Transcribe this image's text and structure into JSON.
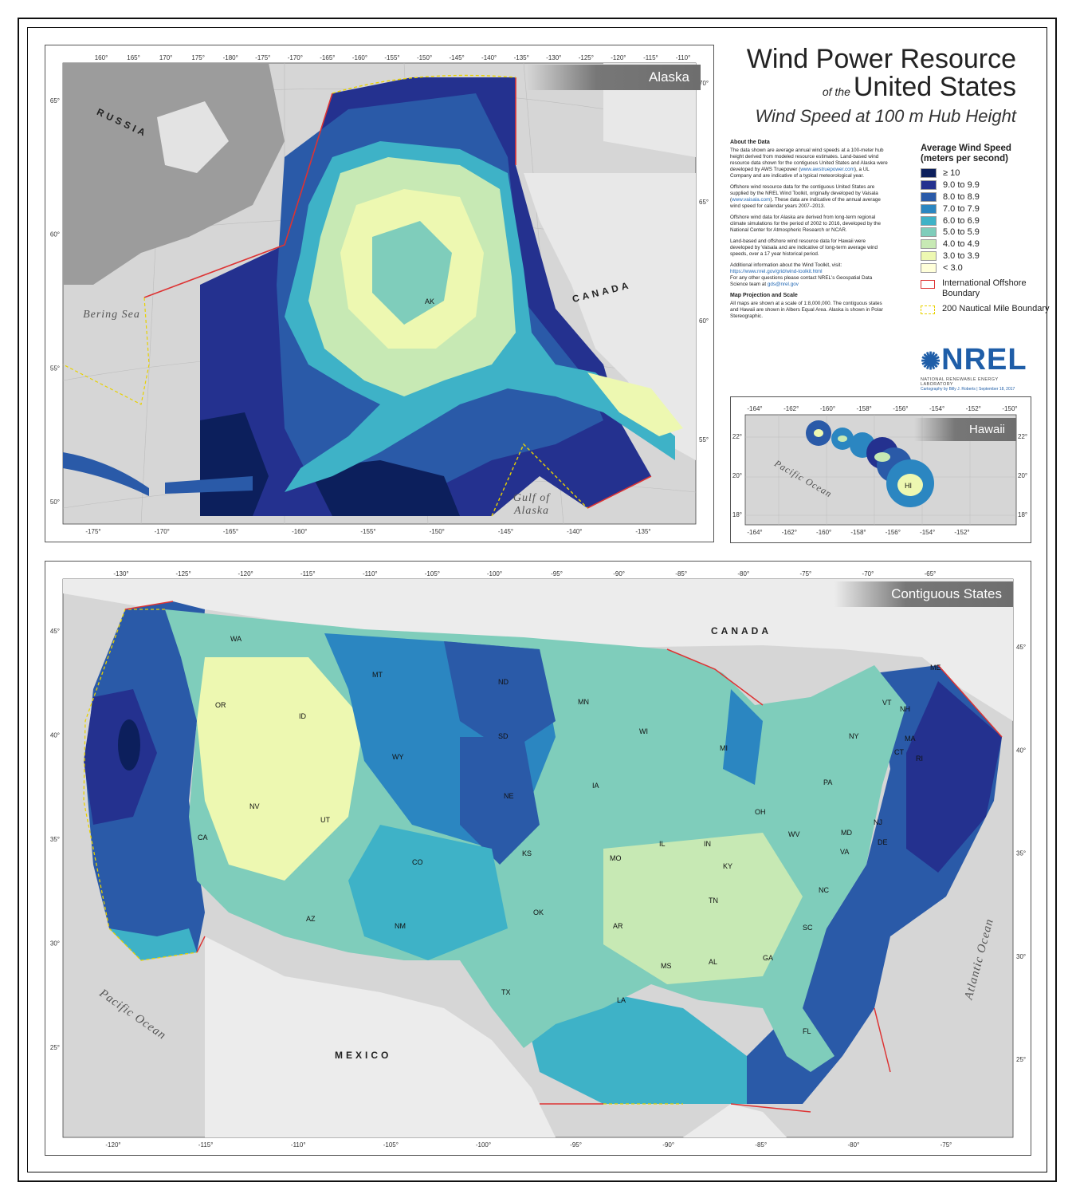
{
  "title": {
    "line1": "Wind Power Resource",
    "of_the": "of the",
    "line2": "United States",
    "line3": "Wind Speed at 100 m Hub Height"
  },
  "about": {
    "heading": "About the Data",
    "p1": "The data shown are average annual wind speeds at a 100-meter hub height derived from modeled resource estimates. Land-based wind resource data shown for the contiguous United States and Alaska were developed by AWS Truepower (",
    "p1_link": "www.awstruepower.com",
    "p1_end": "), a UL Company and are indicative of a typical meteorological year.",
    "p2": "Offshore wind resource data for the contiguous United States are supplied by the NREL Wind Toolkit, originally developed by Vaisala (",
    "p2_link": "www.vaisala.com",
    "p2_end": "). These data are indicative of the annual average wind speed for calendar years 2007–2013.",
    "p3": "Offshore wind data for Alaska are derived from long-term regional climate simulations for the period of 2002 to 2016, developed by the National Center for Atmospheric Research or NCAR.",
    "p4": "Land-based and offshore wind resource data for Hawaii were developed by Vaisala and are indicative of long-term average wind speeds, over a 17 year historical period.",
    "p5": "Additional information about the Wind Toolkit, visit:",
    "p5_link": "https://www.nrel.gov/grid/wind-toolkit.html",
    "p5b": "For any other questions please contact NREL's Geospatial Data Science team at",
    "p5_email": "gds@nrel.gov",
    "heading2": "Map Projection and Scale",
    "p6": "All maps are shown at a scale of 1:8,000,000. The contiguous states and Hawaii are shown in Albers Equal Area. Alaska is shown in Polar Stereographic."
  },
  "legend": {
    "title1": "Average Wind Speed",
    "title2": "(meters per second)",
    "classes": [
      {
        "label": "≥ 10",
        "color": "#0c1f5c"
      },
      {
        "label": "9.0 to 9.9",
        "color": "#24318f"
      },
      {
        "label": "8.0 to 8.9",
        "color": "#2a5aa8"
      },
      {
        "label": "7.0 to 7.9",
        "color": "#2b86c1"
      },
      {
        "label": "6.0 to 6.9",
        "color": "#3eb2c7"
      },
      {
        "label": "5.0 to 5.9",
        "color": "#7fcdbb"
      },
      {
        "label": "4.0 to 4.9",
        "color": "#c7e9b4"
      },
      {
        "label": "3.0 to 3.9",
        "color": "#edf8b1"
      },
      {
        "label": "< 3.0",
        "color": "#ffffd9"
      }
    ],
    "boundary1": "International Offshore Boundary",
    "boundary2": "200 Nautical Mile Boundary"
  },
  "nrel": {
    "logo": "NREL",
    "sub": "NATIONAL RENEWABLE ENERGY LABORATORY",
    "credit": "Cartography by Billy J. Roberts | September 18, 2017"
  },
  "alaska": {
    "panel_title": "Alaska",
    "top_ticks": [
      "160°",
      "165°",
      "170°",
      "175°",
      "-180°",
      "-175°",
      "-170°",
      "-165°",
      "-160°",
      "-155°",
      "-150°",
      "-145°",
      "-140°",
      "-135°",
      "-130°",
      "-125°",
      "-120°",
      "-115°",
      "-110°"
    ],
    "bottom_ticks": [
      "-175°",
      "-170°",
      "-165°",
      "-160°",
      "-155°",
      "-150°",
      "-145°",
      "-140°",
      "-135°"
    ],
    "left_ticks": [
      "65°",
      "60°",
      "55°",
      "50°"
    ],
    "right_ticks": [
      "70°",
      "65°",
      "60°",
      "55°"
    ],
    "state": "AK",
    "russia": "RUSSIA",
    "canada": "CANADA",
    "bering": "Bering Sea",
    "gulf": "Gulf of Alaska"
  },
  "hawaii": {
    "panel_title": "Hawaii",
    "top_ticks": [
      "-164°",
      "-162°",
      "-160°",
      "-158°",
      "-156°",
      "-154°",
      "-152°",
      "-150°"
    ],
    "bottom_ticks": [
      "-164°",
      "-162°",
      "-160°",
      "-158°",
      "-156°",
      "-154°",
      "-152°"
    ],
    "left_ticks": [
      "22°",
      "20°",
      "18°"
    ],
    "right_ticks": [
      "22°",
      "20°",
      "18°"
    ],
    "state": "HI",
    "ocean": "Pacific Ocean"
  },
  "conus": {
    "panel_title": "Contiguous States",
    "top_ticks": [
      "-130°",
      "-125°",
      "-120°",
      "-115°",
      "-110°",
      "-105°",
      "-100°",
      "-95°",
      "-90°",
      "-85°",
      "-80°",
      "-75°",
      "-70°",
      "-65°"
    ],
    "bottom_ticks": [
      "-120°",
      "-115°",
      "-110°",
      "-105°",
      "-100°",
      "-95°",
      "-90°",
      "-85°",
      "-80°",
      "-75°"
    ],
    "left_ticks": [
      "45°",
      "40°",
      "35°",
      "30°",
      "25°"
    ],
    "right_ticks": [
      "45°",
      "40°",
      "35°",
      "30°",
      "25°"
    ],
    "canada": "CANADA",
    "mexico": "MEXICO",
    "pacific": "Pacific Ocean",
    "atlantic": "Atlantic Ocean",
    "states": [
      "WA",
      "OR",
      "CA",
      "ID",
      "NV",
      "MT",
      "WY",
      "UT",
      "AZ",
      "CO",
      "NM",
      "ND",
      "SD",
      "NE",
      "KS",
      "OK",
      "TX",
      "MN",
      "IA",
      "MO",
      "AR",
      "LA",
      "WI",
      "IL",
      "MI",
      "IN",
      "KY",
      "TN",
      "MS",
      "AL",
      "GA",
      "FL",
      "SC",
      "NC",
      "VA",
      "WV",
      "OH",
      "PA",
      "NY",
      "MD",
      "DE",
      "NJ",
      "CT",
      "RI",
      "MA",
      "VT",
      "NH",
      "ME"
    ]
  }
}
